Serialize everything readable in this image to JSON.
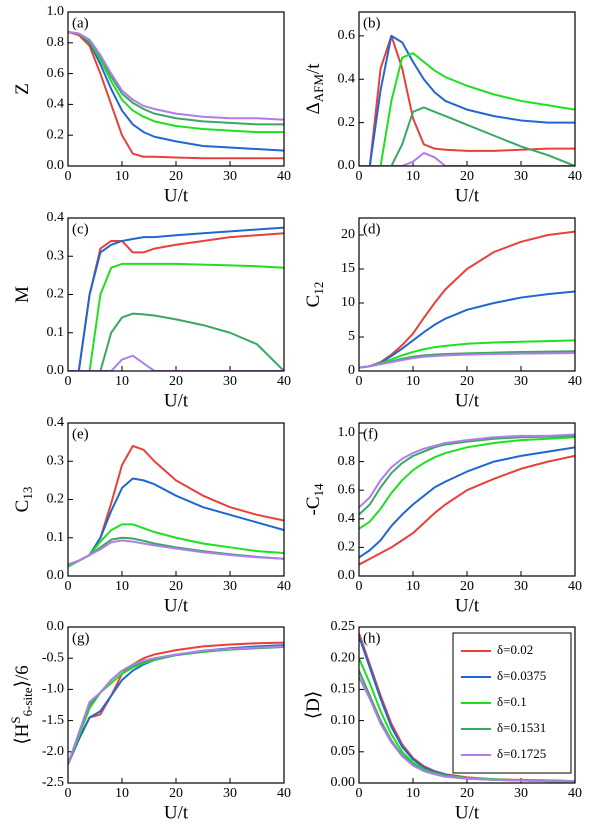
{
  "chart_data": [
    {
      "type": "line",
      "panel_label": "(a)",
      "xlabel": "U/t",
      "ylabel": [
        {
          "text": "Z"
        }
      ],
      "x": [
        0,
        2,
        4,
        6,
        8,
        10,
        12,
        14,
        16,
        20,
        25,
        30,
        35,
        40
      ],
      "xlim": [
        0,
        40
      ],
      "xticks": [
        0,
        10,
        20,
        30,
        40
      ],
      "ylim": [
        0,
        1
      ],
      "yticks": [
        {
          "value": 0,
          "label": "0.0"
        },
        0.2,
        0.4,
        0.6,
        0.8,
        {
          "value": 1,
          "label": "1.0"
        }
      ],
      "series": [
        {
          "color": "#e8413c",
          "values": [
            0.87,
            0.85,
            0.78,
            0.6,
            0.4,
            0.2,
            0.08,
            0.06,
            0.06,
            0.055,
            0.05,
            0.05,
            0.05,
            0.05
          ]
        },
        {
          "color": "#2067d0",
          "values": [
            0.87,
            0.86,
            0.8,
            0.66,
            0.5,
            0.36,
            0.27,
            0.22,
            0.19,
            0.16,
            0.13,
            0.12,
            0.11,
            0.1
          ]
        },
        {
          "color": "#1fe01f",
          "values": [
            0.87,
            0.86,
            0.81,
            0.69,
            0.55,
            0.43,
            0.36,
            0.32,
            0.29,
            0.26,
            0.24,
            0.23,
            0.22,
            0.22
          ]
        },
        {
          "color": "#3aa864",
          "values": [
            0.87,
            0.86,
            0.82,
            0.71,
            0.58,
            0.47,
            0.41,
            0.37,
            0.34,
            0.31,
            0.29,
            0.28,
            0.27,
            0.27
          ]
        },
        {
          "color": "#b07ee8",
          "values": [
            0.87,
            0.86,
            0.82,
            0.72,
            0.6,
            0.49,
            0.43,
            0.39,
            0.37,
            0.34,
            0.32,
            0.31,
            0.31,
            0.3
          ]
        }
      ]
    },
    {
      "type": "line",
      "panel_label": "(b)",
      "xlabel": "U/t",
      "ylabel": [
        {
          "text": "Δ"
        },
        {
          "text": "AFM",
          "sub": true
        },
        {
          "text": "/t"
        }
      ],
      "x": [
        0,
        2,
        4,
        6,
        8,
        10,
        12,
        14,
        16,
        20,
        25,
        30,
        35,
        40
      ],
      "xlim": [
        0,
        40
      ],
      "xticks": [
        0,
        10,
        20,
        30,
        40
      ],
      "ylim": [
        0,
        0.71
      ],
      "yticks": [
        {
          "value": 0,
          "label": "0.0"
        },
        0.2,
        0.4,
        0.6
      ],
      "series": [
        {
          "color": "#e8413c",
          "values": [
            0,
            0,
            0.45,
            0.6,
            0.45,
            0.22,
            0.1,
            0.08,
            0.075,
            0.07,
            0.07,
            0.075,
            0.08,
            0.08
          ]
        },
        {
          "color": "#2067d0",
          "values": [
            0,
            0,
            0.35,
            0.6,
            0.57,
            0.48,
            0.4,
            0.34,
            0.3,
            0.26,
            0.23,
            0.21,
            0.2,
            0.2
          ]
        },
        {
          "color": "#1fe01f",
          "values": [
            0,
            0,
            0,
            0.3,
            0.5,
            0.52,
            0.48,
            0.44,
            0.41,
            0.37,
            0.33,
            0.3,
            0.28,
            0.26
          ]
        },
        {
          "color": "#3aa864",
          "values": [
            0,
            0,
            0,
            0,
            0.1,
            0.25,
            0.27,
            0.25,
            0.23,
            0.19,
            0.14,
            0.09,
            0.05,
            0
          ]
        },
        {
          "color": "#b07ee8",
          "values": [
            0,
            0,
            0,
            0,
            0,
            0.02,
            0.06,
            0.04,
            0,
            0,
            0,
            0,
            0,
            0
          ]
        }
      ]
    },
    {
      "type": "line",
      "panel_label": "(c)",
      "xlabel": "U/t",
      "ylabel": [
        {
          "text": "M"
        }
      ],
      "x": [
        0,
        2,
        4,
        6,
        8,
        10,
        12,
        14,
        16,
        20,
        25,
        30,
        35,
        40
      ],
      "xlim": [
        0,
        40
      ],
      "xticks": [
        0,
        10,
        20,
        30,
        40
      ],
      "ylim": [
        0,
        0.4
      ],
      "yticks": [
        {
          "value": 0,
          "label": "0.0"
        },
        0.1,
        0.2,
        0.3,
        0.4
      ],
      "series": [
        {
          "color": "#e8413c",
          "values": [
            0,
            0,
            0.2,
            0.32,
            0.34,
            0.34,
            0.31,
            0.31,
            0.32,
            0.33,
            0.34,
            0.35,
            0.355,
            0.36
          ]
        },
        {
          "color": "#2067d0",
          "values": [
            0,
            0,
            0.2,
            0.31,
            0.33,
            0.34,
            0.345,
            0.35,
            0.35,
            0.355,
            0.36,
            0.365,
            0.37,
            0.375
          ]
        },
        {
          "color": "#1fe01f",
          "values": [
            0,
            0,
            0,
            0.2,
            0.27,
            0.28,
            0.28,
            0.28,
            0.28,
            0.28,
            0.278,
            0.276,
            0.274,
            0.27
          ]
        },
        {
          "color": "#3aa864",
          "values": [
            0,
            0,
            0,
            0,
            0.1,
            0.14,
            0.15,
            0.148,
            0.145,
            0.135,
            0.12,
            0.1,
            0.07,
            0
          ]
        },
        {
          "color": "#b07ee8",
          "values": [
            0,
            0,
            0,
            0,
            0,
            0.03,
            0.04,
            0.02,
            0,
            0,
            0,
            0,
            0,
            0
          ]
        }
      ]
    },
    {
      "type": "line",
      "panel_label": "(d)",
      "xlabel": "U/t",
      "ylabel": [
        {
          "text": "C"
        },
        {
          "text": "12",
          "sub": true
        }
      ],
      "x": [
        0,
        2,
        4,
        6,
        8,
        10,
        12,
        14,
        16,
        20,
        25,
        30,
        35,
        40
      ],
      "xlim": [
        0,
        40
      ],
      "xticks": [
        0,
        10,
        20,
        30,
        40
      ],
      "ylim": [
        0,
        22.5
      ],
      "yticks": [
        0,
        5,
        10,
        15,
        20
      ],
      "series": [
        {
          "color": "#e8413c",
          "values": [
            0.5,
            0.7,
            1.3,
            2.4,
            3.8,
            5.5,
            7.8,
            10,
            12,
            15,
            17.5,
            19,
            20,
            20.5
          ]
        },
        {
          "color": "#2067d0",
          "values": [
            0.5,
            0.7,
            1.2,
            2.2,
            3.3,
            4.5,
            5.7,
            6.8,
            7.7,
            9,
            10,
            10.8,
            11.3,
            11.7
          ]
        },
        {
          "color": "#1fe01f",
          "values": [
            0.5,
            0.7,
            1.1,
            1.7,
            2.3,
            2.8,
            3.2,
            3.5,
            3.7,
            4,
            4.2,
            4.3,
            4.4,
            4.5
          ]
        },
        {
          "color": "#3aa864",
          "values": [
            0.5,
            0.7,
            1,
            1.4,
            1.8,
            2.1,
            2.3,
            2.4,
            2.5,
            2.6,
            2.7,
            2.8,
            2.85,
            2.9
          ]
        },
        {
          "color": "#b07ee8",
          "values": [
            0.5,
            0.7,
            1,
            1.3,
            1.6,
            1.9,
            2.1,
            2.2,
            2.3,
            2.4,
            2.5,
            2.55,
            2.6,
            2.65
          ]
        }
      ]
    },
    {
      "type": "line",
      "panel_label": "(e)",
      "xlabel": "U/t",
      "ylabel": [
        {
          "text": "C"
        },
        {
          "text": "13",
          "sub": true
        }
      ],
      "x": [
        0,
        2,
        4,
        6,
        8,
        10,
        12,
        14,
        16,
        20,
        25,
        30,
        35,
        40
      ],
      "xlim": [
        0,
        40
      ],
      "xticks": [
        0,
        10,
        20,
        30,
        40
      ],
      "ylim": [
        0,
        0.4
      ],
      "yticks": [
        {
          "value": 0,
          "label": "0.0"
        },
        0.1,
        0.2,
        0.3,
        0.4
      ],
      "series": [
        {
          "color": "#e8413c",
          "values": [
            0.025,
            0.04,
            0.055,
            0.1,
            0.19,
            0.29,
            0.34,
            0.33,
            0.3,
            0.25,
            0.21,
            0.18,
            0.16,
            0.145
          ]
        },
        {
          "color": "#2067d0",
          "values": [
            0.025,
            0.04,
            0.055,
            0.1,
            0.17,
            0.23,
            0.255,
            0.25,
            0.24,
            0.21,
            0.18,
            0.16,
            0.14,
            0.12
          ]
        },
        {
          "color": "#1fe01f",
          "values": [
            0.025,
            0.04,
            0.055,
            0.09,
            0.12,
            0.135,
            0.135,
            0.125,
            0.115,
            0.1,
            0.085,
            0.075,
            0.065,
            0.06
          ]
        },
        {
          "color": "#3aa864",
          "values": [
            0.03,
            0.04,
            0.055,
            0.075,
            0.095,
            0.1,
            0.098,
            0.092,
            0.085,
            0.075,
            0.065,
            0.057,
            0.05,
            0.045
          ]
        },
        {
          "color": "#b07ee8",
          "values": [
            0.03,
            0.04,
            0.055,
            0.07,
            0.088,
            0.093,
            0.09,
            0.085,
            0.08,
            0.072,
            0.062,
            0.055,
            0.049,
            0.045
          ]
        }
      ]
    },
    {
      "type": "line",
      "panel_label": "(f)",
      "xlabel": "U/t",
      "ylabel": [
        {
          "text": "-C"
        },
        {
          "text": "14",
          "sub": true
        }
      ],
      "x": [
        0,
        2,
        4,
        6,
        8,
        10,
        12,
        14,
        16,
        20,
        25,
        30,
        35,
        40
      ],
      "xlim": [
        0,
        40
      ],
      "xticks": [
        0,
        10,
        20,
        30,
        40
      ],
      "ylim": [
        0,
        1.07
      ],
      "yticks": [
        {
          "value": 0,
          "label": "0.0"
        },
        0.2,
        0.4,
        0.6,
        0.8,
        {
          "value": 1,
          "label": "1.0"
        }
      ],
      "series": [
        {
          "color": "#e8413c",
          "values": [
            0.08,
            0.12,
            0.16,
            0.2,
            0.25,
            0.3,
            0.37,
            0.44,
            0.5,
            0.6,
            0.68,
            0.75,
            0.8,
            0.84
          ]
        },
        {
          "color": "#2067d0",
          "values": [
            0.13,
            0.18,
            0.25,
            0.35,
            0.43,
            0.5,
            0.56,
            0.62,
            0.66,
            0.73,
            0.8,
            0.84,
            0.87,
            0.9
          ]
        },
        {
          "color": "#1fe01f",
          "values": [
            0.33,
            0.38,
            0.47,
            0.58,
            0.67,
            0.74,
            0.79,
            0.83,
            0.86,
            0.9,
            0.93,
            0.95,
            0.96,
            0.97
          ]
        },
        {
          "color": "#3aa864",
          "values": [
            0.43,
            0.5,
            0.62,
            0.72,
            0.79,
            0.84,
            0.87,
            0.9,
            0.92,
            0.94,
            0.96,
            0.97,
            0.975,
            0.98
          ]
        },
        {
          "color": "#b07ee8",
          "values": [
            0.48,
            0.55,
            0.67,
            0.76,
            0.82,
            0.86,
            0.89,
            0.91,
            0.93,
            0.95,
            0.97,
            0.98,
            0.98,
            0.99
          ]
        }
      ]
    },
    {
      "type": "line",
      "panel_label": "(g)",
      "xlabel": "U/t",
      "ylabel": [
        {
          "text": "⟨H"
        },
        {
          "text": "S",
          "sup": true
        },
        {
          "text": "6-site",
          "sub": true
        },
        {
          "text": "⟩/6"
        }
      ],
      "x": [
        0,
        2,
        4,
        6,
        8,
        10,
        12,
        14,
        16,
        20,
        25,
        30,
        35,
        40
      ],
      "xlim": [
        0,
        40
      ],
      "xticks": [
        0,
        10,
        20,
        30,
        40
      ],
      "ylim": [
        -2.5,
        0
      ],
      "yticks": [
        -2.5,
        {
          "value": -2,
          "label": "-2.0"
        },
        -1.5,
        {
          "value": -1,
          "label": "-1.0"
        },
        -0.5,
        {
          "value": 0,
          "label": "0.0"
        }
      ],
      "series": [
        {
          "color": "#e8413c",
          "values": [
            -2.2,
            -1.8,
            -1.45,
            -1.4,
            -1.1,
            -0.75,
            -0.6,
            -0.5,
            -0.44,
            -0.37,
            -0.31,
            -0.28,
            -0.26,
            -0.25
          ]
        },
        {
          "color": "#2067d0",
          "values": [
            -2.2,
            -1.8,
            -1.45,
            -1.35,
            -1.1,
            -0.85,
            -0.7,
            -0.6,
            -0.53,
            -0.45,
            -0.38,
            -0.34,
            -0.31,
            -0.29
          ]
        },
        {
          "color": "#1fe01f",
          "values": [
            -2.2,
            -1.75,
            -1.3,
            -1.05,
            -0.9,
            -0.75,
            -0.65,
            -0.58,
            -0.53,
            -0.45,
            -0.4,
            -0.36,
            -0.33,
            -0.31
          ]
        },
        {
          "color": "#3aa864",
          "values": [
            -2.2,
            -1.7,
            -1.25,
            -1.05,
            -0.85,
            -0.7,
            -0.62,
            -0.56,
            -0.51,
            -0.45,
            -0.39,
            -0.36,
            -0.34,
            -0.32
          ]
        },
        {
          "color": "#b07ee8",
          "values": [
            -2.2,
            -1.7,
            -1.2,
            -1.05,
            -0.85,
            -0.7,
            -0.6,
            -0.54,
            -0.5,
            -0.44,
            -0.38,
            -0.35,
            -0.33,
            -0.31
          ]
        }
      ]
    },
    {
      "type": "line",
      "panel_label": "(h)",
      "xlabel": "U/t",
      "ylabel": [
        {
          "text": "⟨D⟩"
        }
      ],
      "legend": "upper right",
      "x": [
        0,
        2,
        4,
        6,
        8,
        10,
        12,
        14,
        16,
        20,
        25,
        30,
        35,
        40
      ],
      "xlim": [
        0,
        40
      ],
      "xticks": [
        0,
        10,
        20,
        30,
        40
      ],
      "ylim": [
        0,
        0.25
      ],
      "yticks": [
        {
          "value": 0,
          "label": "0.00"
        },
        0.05,
        {
          "value": 0.1,
          "label": "0.10"
        },
        0.15,
        {
          "value": 0.2,
          "label": "0.20"
        },
        0.25
      ],
      "series": [
        {
          "name": "δ=0.02",
          "color": "#e8413c",
          "values": [
            0.24,
            0.19,
            0.14,
            0.095,
            0.062,
            0.04,
            0.027,
            0.019,
            0.014,
            0.009,
            0.006,
            0.005,
            0.004,
            0.003
          ]
        },
        {
          "name": "δ=0.0375",
          "color": "#2067d0",
          "values": [
            0.235,
            0.185,
            0.135,
            0.09,
            0.058,
            0.038,
            0.025,
            0.018,
            0.013,
            0.008,
            0.006,
            0.004,
            0.004,
            0.003
          ]
        },
        {
          "name": "δ=0.1",
          "color": "#1fe01f",
          "values": [
            0.2,
            0.16,
            0.115,
            0.078,
            0.05,
            0.033,
            0.022,
            0.016,
            0.012,
            0.008,
            0.006,
            0.004,
            0.003,
            0.003
          ]
        },
        {
          "name": "δ=0.1531",
          "color": "#3aa864",
          "values": [
            0.18,
            0.14,
            0.1,
            0.068,
            0.045,
            0.03,
            0.02,
            0.015,
            0.011,
            0.007,
            0.005,
            0.004,
            0.003,
            0.003
          ]
        },
        {
          "name": "δ=0.1725",
          "color": "#b07ee8",
          "values": [
            0.17,
            0.135,
            0.095,
            0.065,
            0.043,
            0.028,
            0.019,
            0.014,
            0.01,
            0.007,
            0.005,
            0.004,
            0.003,
            0.003
          ]
        }
      ]
    }
  ]
}
